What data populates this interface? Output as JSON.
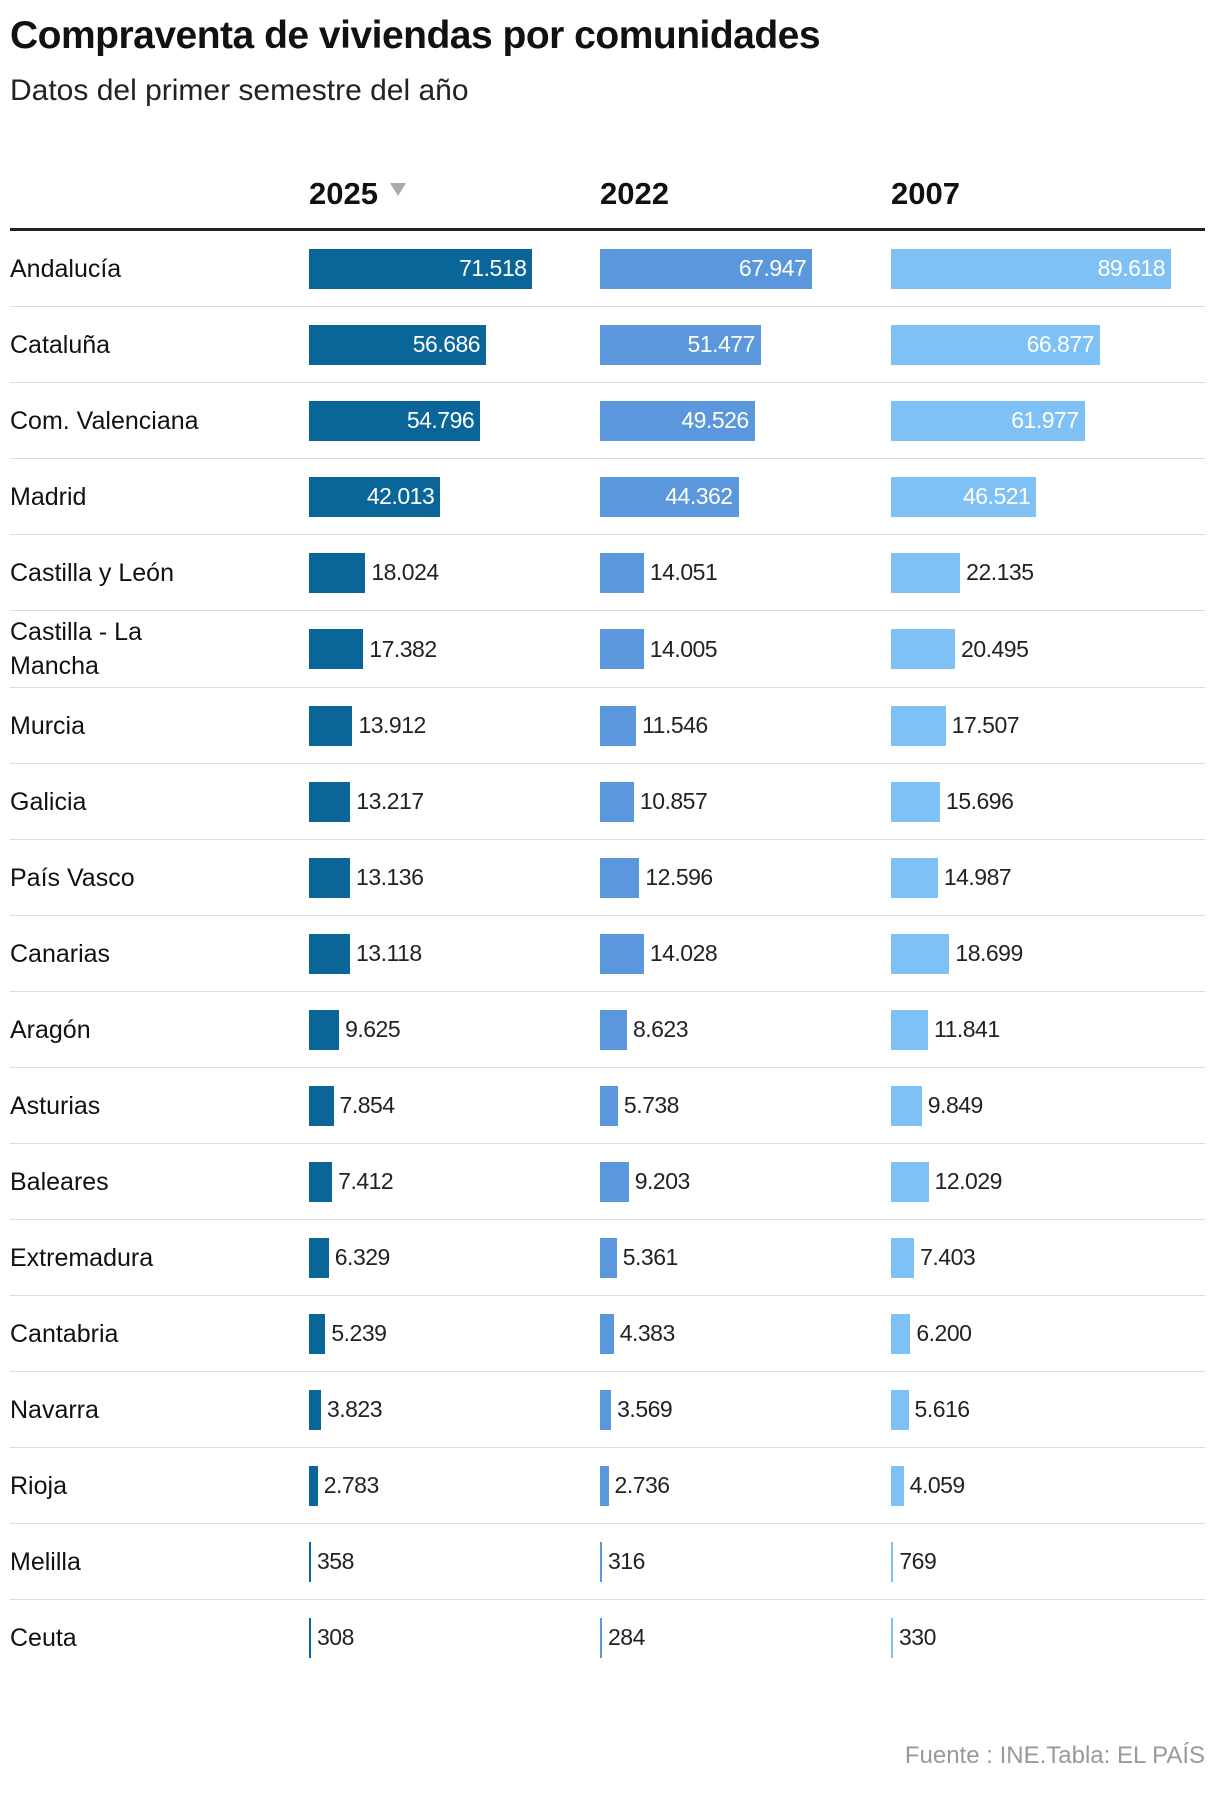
{
  "chart_data": {
    "type": "bar-table",
    "title": "Compraventa de viviendas por comunidades",
    "subtitle": "Datos del primer semestre del año",
    "source": "Fuente : INE.Tabla: EL PAÍS",
    "categories": [
      "Andalucía",
      "Cataluña",
      "Com. Valenciana",
      "Madrid",
      "Castilla y León",
      "Castilla - La Mancha",
      "Murcia",
      "Galicia",
      "País Vasco",
      "Canarias",
      "Aragón",
      "Asturias",
      "Baleares",
      "Extremadura",
      "Cantabria",
      "Navarra",
      "Rioja",
      "Melilla",
      "Ceuta"
    ],
    "series": [
      {
        "name": "2025",
        "color": "#0a6699",
        "values": [
          71518,
          56686,
          54796,
          42013,
          18024,
          17382,
          13912,
          13217,
          13136,
          13118,
          9625,
          7854,
          7412,
          6329,
          5239,
          3823,
          2783,
          358,
          308
        ],
        "value_labels": [
          "71.518",
          "56.686",
          "54.796",
          "42.013",
          "18.024",
          "17.382",
          "13.912",
          "13.217",
          "13.136",
          "13.118",
          "9.625",
          "7.854",
          "7.412",
          "6.329",
          "5.239",
          "3.823",
          "2.783",
          "358",
          "308"
        ]
      },
      {
        "name": "2022",
        "color": "#5b97dd",
        "values": [
          67947,
          51477,
          49526,
          44362,
          14051,
          14005,
          11546,
          10857,
          12596,
          14028,
          8623,
          5738,
          9203,
          5361,
          4383,
          3569,
          2736,
          316,
          284
        ],
        "value_labels": [
          "67.947",
          "51.477",
          "49.526",
          "44.362",
          "14.051",
          "14.005",
          "11.546",
          "10.857",
          "12.596",
          "14.028",
          "8.623",
          "5.738",
          "9.203",
          "5.361",
          "4.383",
          "3.569",
          "2.736",
          "316",
          "284"
        ]
      },
      {
        "name": "2007",
        "color": "#7fc1f5",
        "values": [
          89618,
          66877,
          61977,
          46521,
          22135,
          20495,
          17507,
          15696,
          14987,
          18699,
          11841,
          9849,
          12029,
          7403,
          6200,
          5616,
          4059,
          769,
          330
        ],
        "value_labels": [
          "89.618",
          "66.877",
          "61.977",
          "46.521",
          "22.135",
          "20.495",
          "17.507",
          "15.696",
          "14.987",
          "18.699",
          "11.841",
          "9.849",
          "12.029",
          "7.403",
          "6.200",
          "5.616",
          "4.059",
          "769",
          "330"
        ]
      }
    ]
  }
}
